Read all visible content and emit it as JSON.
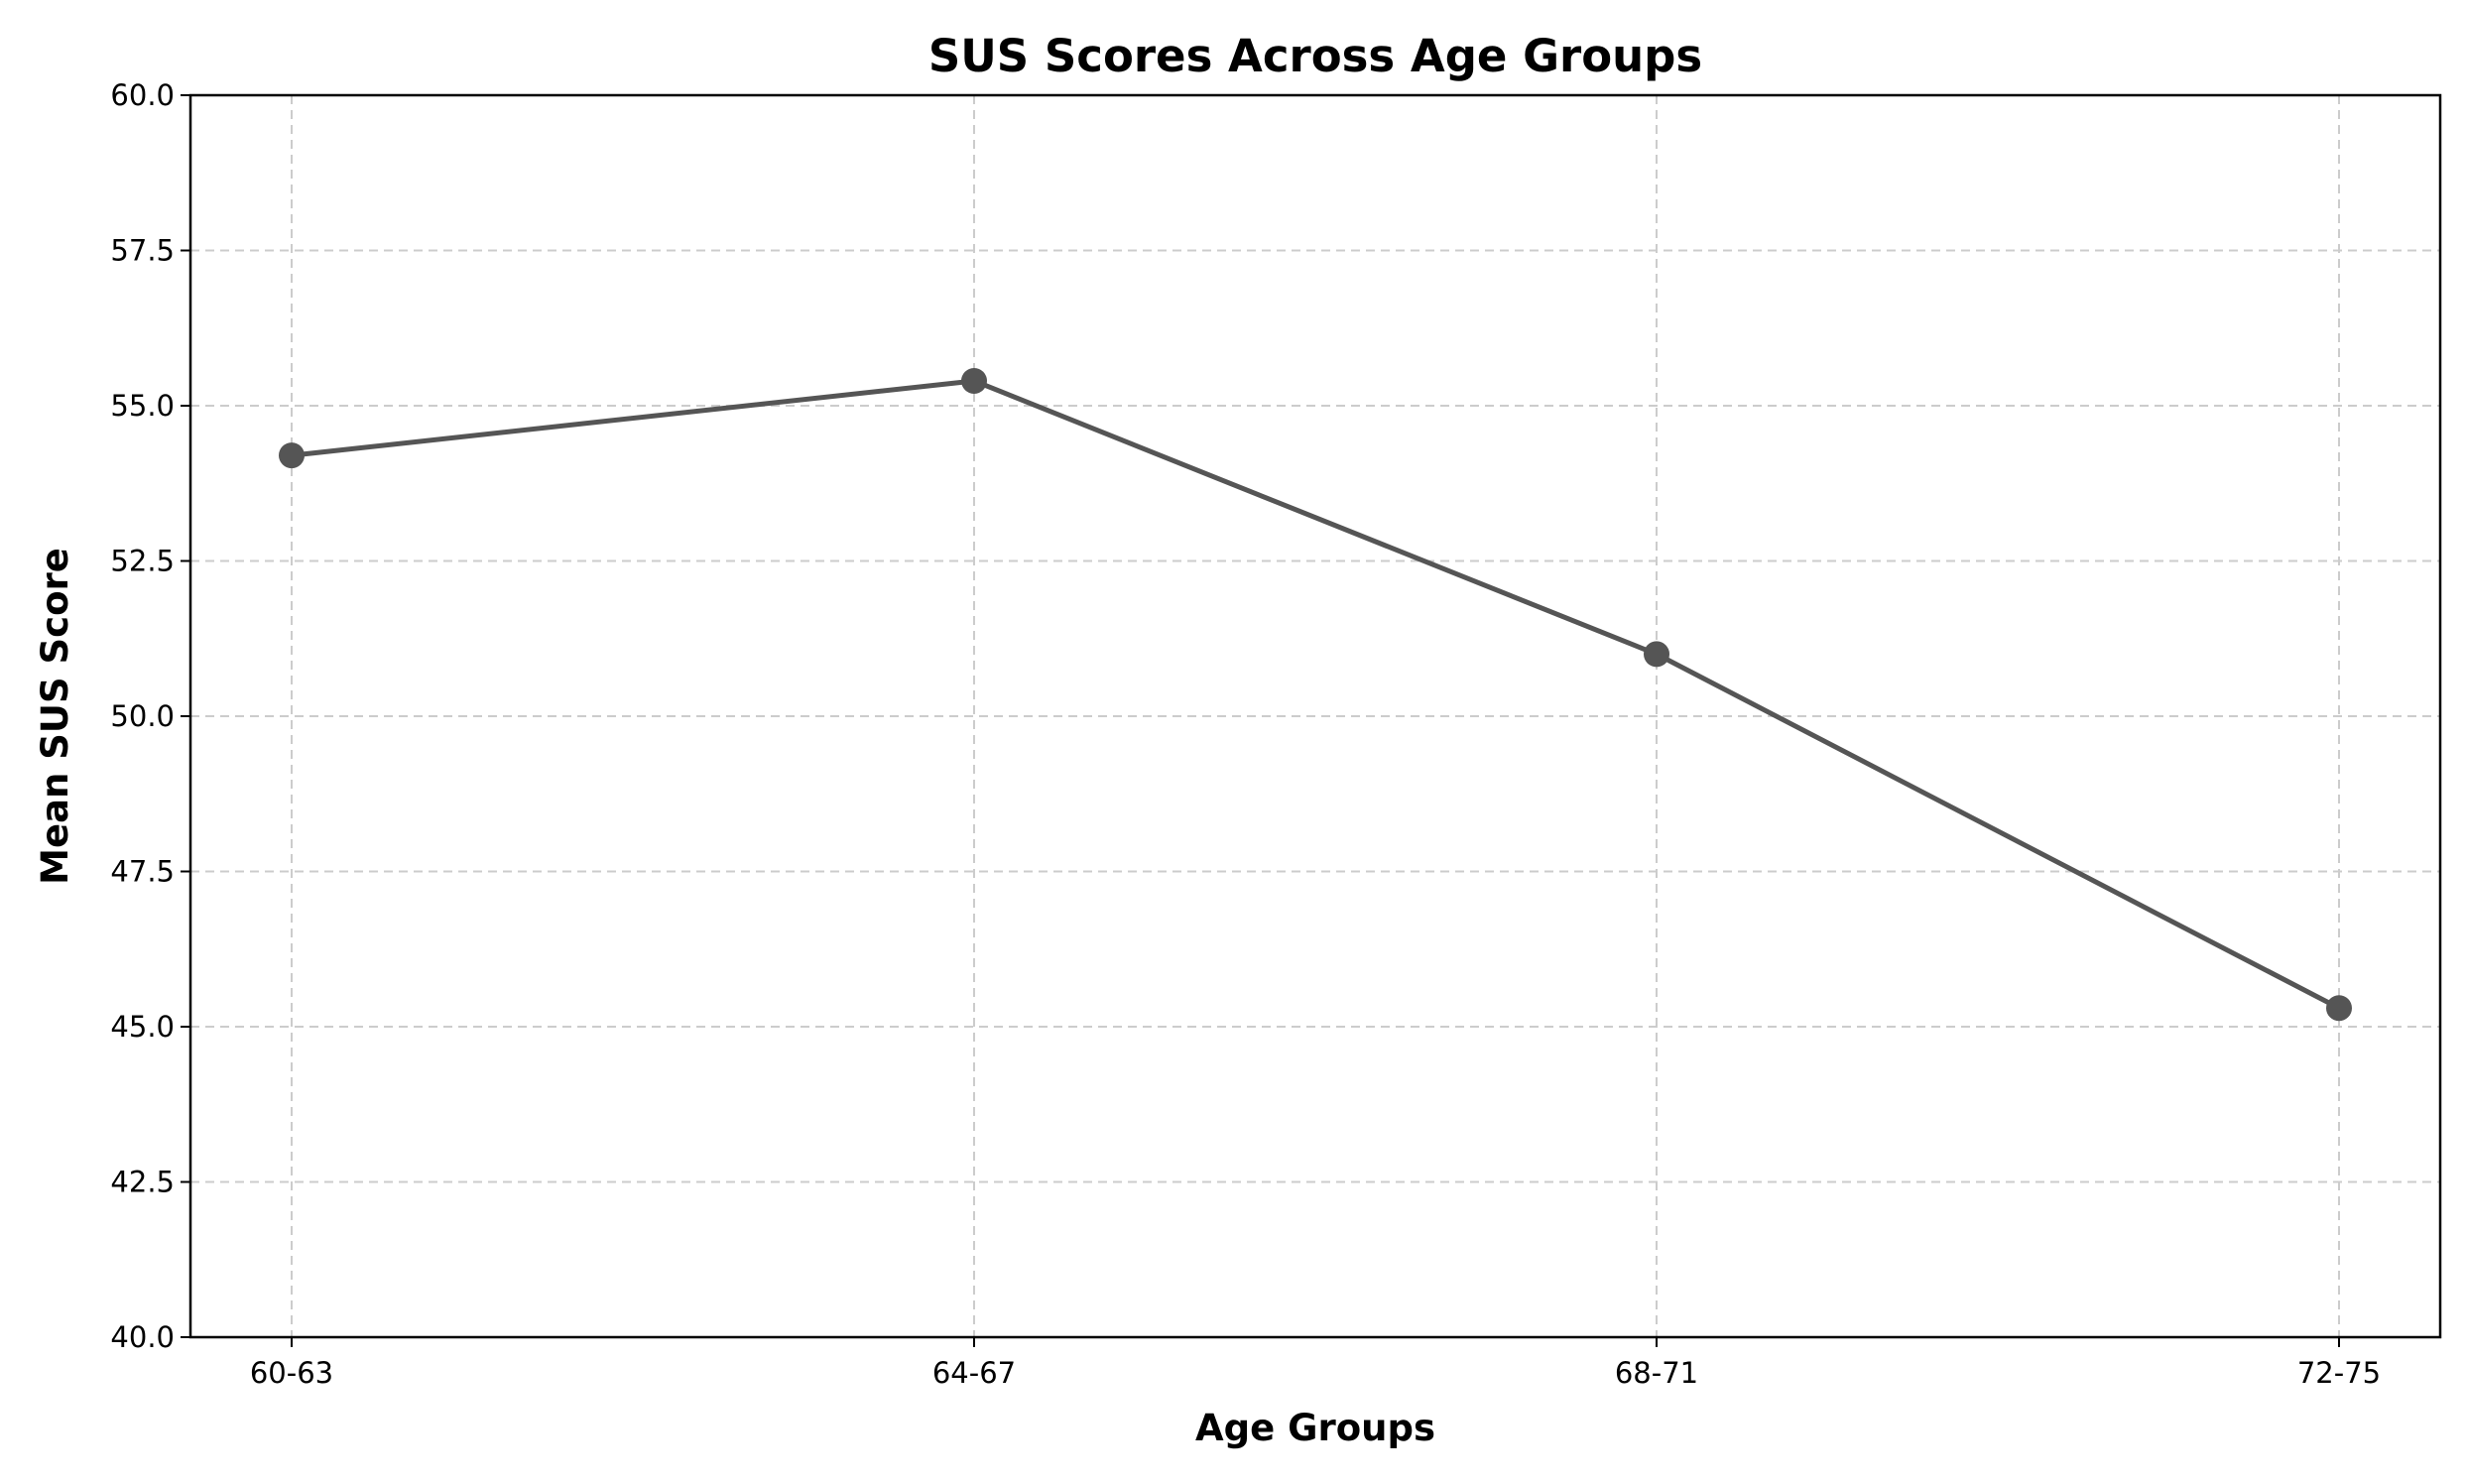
{
  "chart_data": {
    "type": "line",
    "title": "SUS Scores Across Age Groups",
    "xlabel": "Age Groups",
    "ylabel": "Mean SUS Score",
    "categories": [
      "60-63",
      "64-67",
      "68-71",
      "72-75"
    ],
    "series": [
      {
        "values": [
          54.2,
          55.4,
          51.0,
          45.3
        ],
        "color": "#555555",
        "marker": "circle"
      }
    ],
    "ylim": [
      40.0,
      60.0
    ],
    "yticks": [
      40.0,
      42.5,
      45.0,
      47.5,
      50.0,
      52.5,
      55.0,
      57.5,
      60.0
    ],
    "ytick_labels": [
      "40.0",
      "42.5",
      "45.0",
      "47.5",
      "50.0",
      "52.5",
      "55.0",
      "57.5",
      "60.0"
    ],
    "grid": true,
    "legend": "none"
  }
}
